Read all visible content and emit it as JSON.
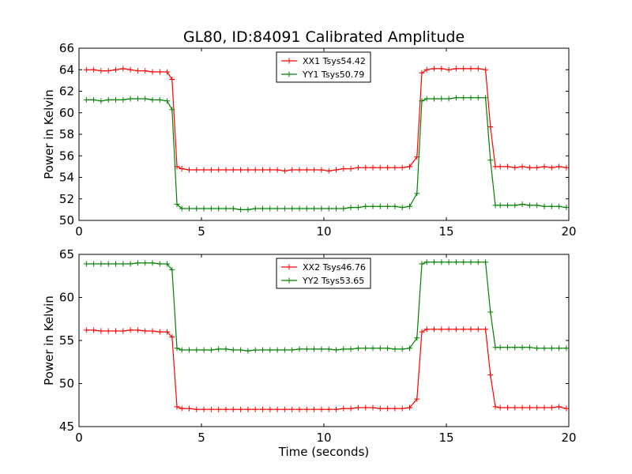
{
  "title": "GL80, ID:84091 Calibrated Amplitude",
  "colors": {
    "red": "#ff0000",
    "green": "#008000"
  },
  "chart_data": [
    {
      "type": "line",
      "ylabel": "Power in Kelvin",
      "xlabel": "",
      "xlim": [
        0,
        20
      ],
      "ylim": [
        50,
        66
      ],
      "xticks": [
        0,
        5,
        10,
        15,
        20
      ],
      "yticks": [
        50,
        52,
        54,
        56,
        58,
        60,
        62,
        64,
        66
      ],
      "legend_position": "top-center",
      "x": [
        0.3,
        0.6,
        0.9,
        1.2,
        1.5,
        1.8,
        2.1,
        2.4,
        2.7,
        3.0,
        3.3,
        3.6,
        3.8,
        4.0,
        4.2,
        4.5,
        4.8,
        5.1,
        5.4,
        5.7,
        6.0,
        6.3,
        6.6,
        6.9,
        7.2,
        7.5,
        7.8,
        8.1,
        8.4,
        8.7,
        9.0,
        9.3,
        9.6,
        9.9,
        10.2,
        10.5,
        10.8,
        11.1,
        11.4,
        11.7,
        12.0,
        12.3,
        12.6,
        12.9,
        13.2,
        13.5,
        13.8,
        14.0,
        14.2,
        14.5,
        14.8,
        15.1,
        15.4,
        15.7,
        16.0,
        16.3,
        16.6,
        16.8,
        17.0,
        17.2,
        17.5,
        17.8,
        18.1,
        18.4,
        18.7,
        19.0,
        19.3,
        19.6,
        19.9
      ],
      "series": [
        {
          "name": "XX1 Tsys54.42",
          "color": "red",
          "values": [
            64.0,
            64.0,
            63.9,
            63.9,
            64.0,
            64.1,
            64.0,
            63.9,
            63.9,
            63.8,
            63.8,
            63.8,
            63.1,
            55.0,
            54.8,
            54.7,
            54.7,
            54.7,
            54.7,
            54.7,
            54.7,
            54.7,
            54.7,
            54.7,
            54.7,
            54.7,
            54.7,
            54.7,
            54.6,
            54.7,
            54.7,
            54.7,
            54.7,
            54.7,
            54.6,
            54.7,
            54.8,
            54.8,
            54.9,
            54.9,
            54.9,
            54.9,
            54.9,
            54.9,
            54.9,
            55.0,
            55.9,
            63.7,
            64.0,
            64.1,
            64.1,
            64.0,
            64.1,
            64.1,
            64.1,
            64.1,
            64.0,
            58.7,
            55.0,
            55.0,
            55.0,
            54.9,
            55.0,
            54.9,
            54.9,
            55.0,
            54.9,
            55.0,
            54.9
          ]
        },
        {
          "name": "YY1 Tsys50.79",
          "color": "green",
          "values": [
            61.2,
            61.2,
            61.1,
            61.2,
            61.2,
            61.2,
            61.3,
            61.3,
            61.3,
            61.2,
            61.2,
            61.1,
            60.3,
            51.5,
            51.1,
            51.1,
            51.1,
            51.1,
            51.1,
            51.1,
            51.1,
            51.1,
            51.0,
            51.0,
            51.1,
            51.1,
            51.1,
            51.1,
            51.1,
            51.1,
            51.1,
            51.1,
            51.1,
            51.1,
            51.1,
            51.1,
            51.1,
            51.2,
            51.2,
            51.3,
            51.3,
            51.3,
            51.3,
            51.3,
            51.2,
            51.3,
            52.5,
            61.1,
            61.3,
            61.3,
            61.3,
            61.3,
            61.4,
            61.4,
            61.4,
            61.4,
            61.4,
            55.6,
            51.4,
            51.4,
            51.4,
            51.4,
            51.5,
            51.4,
            51.4,
            51.3,
            51.3,
            51.3,
            51.2
          ]
        }
      ]
    },
    {
      "type": "line",
      "ylabel": "Power in Kelvin",
      "xlabel": "Time (seconds)",
      "xlim": [
        0,
        20
      ],
      "ylim": [
        45,
        65
      ],
      "xticks": [
        0,
        5,
        10,
        15,
        20
      ],
      "yticks": [
        45,
        50,
        55,
        60,
        65
      ],
      "legend_position": "top-center",
      "x": [
        0.3,
        0.6,
        0.9,
        1.2,
        1.5,
        1.8,
        2.1,
        2.4,
        2.7,
        3.0,
        3.3,
        3.6,
        3.8,
        4.0,
        4.2,
        4.5,
        4.8,
        5.1,
        5.4,
        5.7,
        6.0,
        6.3,
        6.6,
        6.9,
        7.2,
        7.5,
        7.8,
        8.1,
        8.4,
        8.7,
        9.0,
        9.3,
        9.6,
        9.9,
        10.2,
        10.5,
        10.8,
        11.1,
        11.4,
        11.7,
        12.0,
        12.3,
        12.6,
        12.9,
        13.2,
        13.5,
        13.8,
        14.0,
        14.2,
        14.5,
        14.8,
        15.1,
        15.4,
        15.7,
        16.0,
        16.3,
        16.6,
        16.8,
        17.0,
        17.2,
        17.5,
        17.8,
        18.1,
        18.4,
        18.7,
        19.0,
        19.3,
        19.6,
        19.9
      ],
      "series": [
        {
          "name": "XX2 Tsys46.76",
          "color": "red",
          "values": [
            56.2,
            56.2,
            56.1,
            56.1,
            56.1,
            56.1,
            56.2,
            56.2,
            56.1,
            56.1,
            56.0,
            56.0,
            55.4,
            47.3,
            47.1,
            47.1,
            47.0,
            47.0,
            47.0,
            47.0,
            47.0,
            47.0,
            47.0,
            47.0,
            47.0,
            47.0,
            47.0,
            47.0,
            47.0,
            47.0,
            47.0,
            47.0,
            47.0,
            47.0,
            47.0,
            47.0,
            47.1,
            47.1,
            47.2,
            47.2,
            47.2,
            47.1,
            47.1,
            47.1,
            47.1,
            47.2,
            48.2,
            56.0,
            56.3,
            56.3,
            56.3,
            56.3,
            56.3,
            56.3,
            56.3,
            56.3,
            56.3,
            51.0,
            47.3,
            47.2,
            47.2,
            47.2,
            47.2,
            47.2,
            47.2,
            47.2,
            47.2,
            47.3,
            47.1
          ]
        },
        {
          "name": "YY2 Tsys53.65",
          "color": "green",
          "values": [
            63.9,
            63.9,
            63.9,
            63.9,
            63.9,
            63.9,
            63.9,
            64.0,
            64.0,
            64.0,
            63.9,
            63.9,
            63.2,
            54.1,
            53.9,
            53.9,
            53.9,
            53.9,
            53.9,
            54.0,
            54.0,
            53.9,
            53.9,
            53.8,
            53.9,
            53.9,
            53.9,
            53.9,
            53.9,
            53.9,
            54.0,
            54.0,
            54.0,
            54.0,
            54.0,
            53.9,
            54.0,
            54.0,
            54.1,
            54.1,
            54.1,
            54.1,
            54.1,
            54.0,
            54.0,
            54.1,
            55.3,
            63.9,
            64.1,
            64.1,
            64.1,
            64.1,
            64.1,
            64.1,
            64.1,
            64.1,
            64.1,
            58.3,
            54.2,
            54.2,
            54.2,
            54.2,
            54.2,
            54.2,
            54.1,
            54.1,
            54.1,
            54.1,
            54.1
          ]
        }
      ]
    }
  ]
}
